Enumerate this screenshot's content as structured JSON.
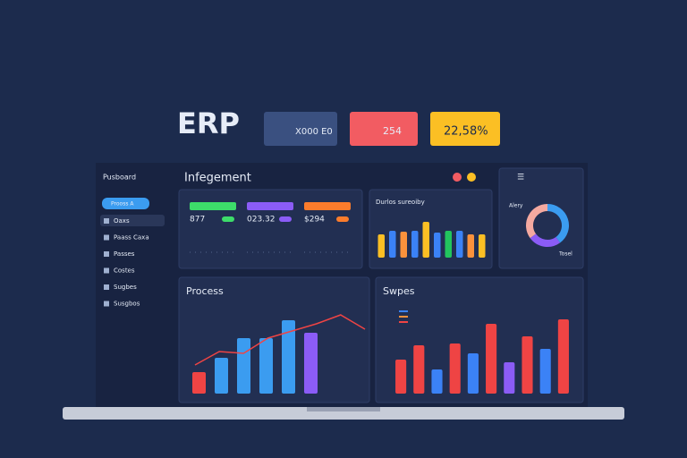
{
  "header": {
    "title": "ERP"
  },
  "kpis": [
    "X000 E0",
    "254",
    "22,58%"
  ],
  "sidebar": {
    "title": "Pusboard",
    "button": "Prooss A",
    "items": [
      "Oaxs",
      "Paass Caxa",
      "Passes",
      "Costes",
      "Sugbes",
      "Susgbos"
    ]
  },
  "dashboard": {
    "title": "Infegement"
  },
  "stats": [
    {
      "value": "877",
      "color": "#3ddc6a"
    },
    {
      "value": "023.32",
      "color": "#8b5cf6"
    },
    {
      "value": "$294",
      "color": "#fb7c2c"
    }
  ],
  "chart_data": [
    {
      "type": "bar",
      "title": "Durlos sureoiby",
      "ylim": [
        0,
        60
      ],
      "values": [
        26,
        30,
        29,
        30,
        40,
        28,
        30,
        30,
        26,
        26
      ],
      "colors": [
        "#fbbf24",
        "#3b82f6",
        "#fb923c",
        "#3b82f6",
        "#fbbf24",
        "#3b82f6",
        "#22c55e",
        "#3b82f6",
        "#fb923c",
        "#fbbf24"
      ]
    },
    {
      "type": "pie",
      "values": [
        40,
        25,
        35
      ],
      "colors": [
        "#3b9cf0",
        "#8b5cf6",
        "#f4a9a0"
      ],
      "annotations": [
        "Alery",
        "Tosel"
      ]
    },
    {
      "type": "bar",
      "title": "Process",
      "ylim": [
        0,
        90
      ],
      "values": [
        24,
        40,
        62,
        62,
        82,
        68
      ],
      "colors": [
        "#ef4444",
        "#3b9cf0",
        "#3b9cf0",
        "#3b9cf0",
        "#3b9cf0",
        "#8b5cf6"
      ],
      "line": {
        "color": "#ef4444",
        "values": [
          32,
          47,
          45,
          62,
          70,
          78,
          88,
          72
        ]
      }
    },
    {
      "type": "bar",
      "title": "Swpes",
      "ylim": [
        0,
        90
      ],
      "values": [
        38,
        54,
        27,
        56,
        45,
        78,
        35,
        64,
        50,
        83
      ],
      "colors": [
        "#ef4444",
        "#ef4444",
        "#3b82f6",
        "#ef4444",
        "#3b82f6",
        "#ef4444",
        "#8b5cf6",
        "#ef4444",
        "#3b82f6",
        "#ef4444"
      ]
    }
  ]
}
